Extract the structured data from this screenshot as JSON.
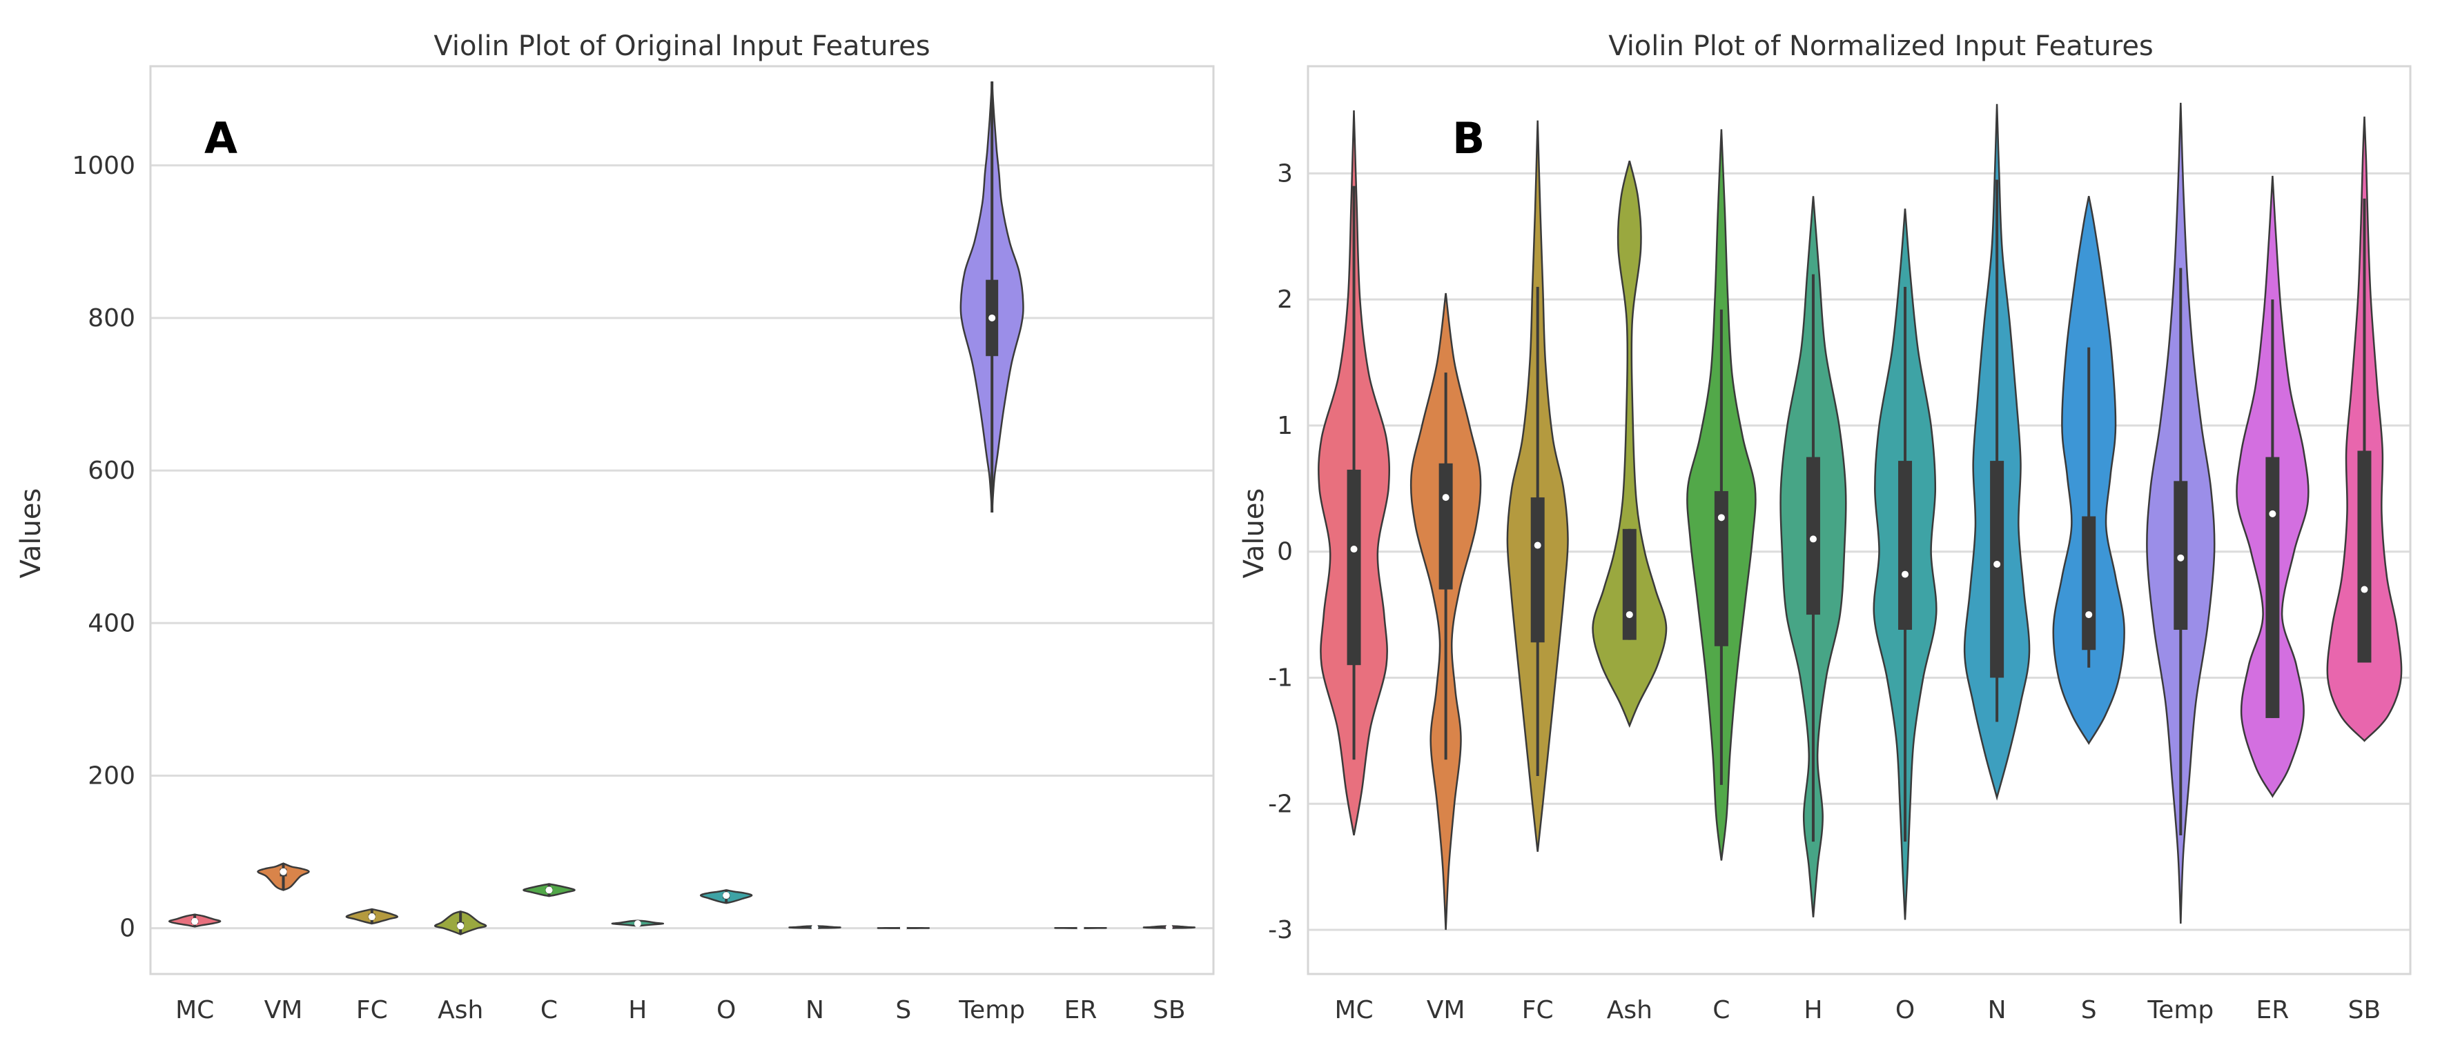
{
  "chart_data": [
    {
      "type": "violin",
      "panel_label": "A",
      "title": "Violin Plot of Original Input Features",
      "xlabel": "",
      "ylabel": "Values",
      "ylim": [
        -60,
        1130
      ],
      "yticks": [
        0,
        200,
        400,
        600,
        800,
        1000
      ],
      "grid": true,
      "categories": [
        "MC",
        "VM",
        "FC",
        "Ash",
        "C",
        "H",
        "O",
        "N",
        "S",
        "Temp",
        "ER",
        "SB"
      ],
      "colors": [
        "#e8707e",
        "#d9844a",
        "#b49a3f",
        "#9aa83f",
        "#52a849",
        "#47a586",
        "#3ea3a5",
        "#3d9fbf",
        "#3d96d6",
        "#9b8ee8",
        "#d36fe0",
        "#e866ad"
      ],
      "series": [
        {
          "name": "MC",
          "min": 2,
          "q1": 6,
          "median": 9,
          "q3": 12,
          "max": 18
        },
        {
          "name": "VM",
          "min": 50,
          "q1": 68,
          "median": 74,
          "q3": 78,
          "max": 85
        },
        {
          "name": "FC",
          "min": 6,
          "q1": 12,
          "median": 15,
          "q3": 19,
          "max": 25
        },
        {
          "name": "Ash",
          "min": -8,
          "q1": 0,
          "median": 3,
          "q3": 8,
          "max": 22
        },
        {
          "name": "C",
          "min": 42,
          "q1": 47,
          "median": 50,
          "q3": 53,
          "max": 58
        },
        {
          "name": "H",
          "min": 3,
          "q1": 5,
          "median": 6,
          "q3": 7,
          "max": 10
        },
        {
          "name": "O",
          "min": 33,
          "q1": 39,
          "median": 43,
          "q3": 46,
          "max": 50
        },
        {
          "name": "N",
          "min": 0,
          "q1": 0.5,
          "median": 1,
          "q3": 1.5,
          "max": 3
        },
        {
          "name": "S",
          "min": 0,
          "q1": 0.1,
          "median": 0.2,
          "q3": 0.3,
          "max": 0.5
        },
        {
          "name": "Temp",
          "min": 545,
          "q1": 750,
          "median": 800,
          "q3": 850,
          "max": 1110
        },
        {
          "name": "ER",
          "min": 0,
          "q1": 0.2,
          "median": 0.3,
          "q3": 0.4,
          "max": 0.5
        },
        {
          "name": "SB",
          "min": 0,
          "q1": 0.5,
          "median": 1,
          "q3": 1.5,
          "max": 3
        }
      ]
    },
    {
      "type": "violin",
      "panel_label": "B",
      "title": "Violin Plot of Normalized Input Features",
      "xlabel": "",
      "ylabel": "Values",
      "ylim": [
        -3.35,
        3.85
      ],
      "yticks": [
        -3,
        -2,
        -1,
        0,
        1,
        2,
        3
      ],
      "grid": true,
      "categories": [
        "MC",
        "VM",
        "FC",
        "Ash",
        "C",
        "H",
        "O",
        "N",
        "S",
        "Temp",
        "ER",
        "SB"
      ],
      "colors": [
        "#e8707e",
        "#d9844a",
        "#b49a3f",
        "#9aa83f",
        "#52a849",
        "#47a586",
        "#3ea3a5",
        "#3d9fbf",
        "#3d96d6",
        "#9b8ee8",
        "#d36fe0",
        "#e866ad"
      ],
      "series": [
        {
          "name": "MC",
          "min": -2.25,
          "max": 3.5,
          "q1": -0.9,
          "median": 0.02,
          "q3": 0.65,
          "whisker_low": -1.65,
          "whisker_high": 2.9
        },
        {
          "name": "VM",
          "min": -3.0,
          "max": 2.05,
          "q1": -0.3,
          "median": 0.43,
          "q3": 0.7,
          "whisker_low": -1.65,
          "whisker_high": 1.42
        },
        {
          "name": "FC",
          "min": -2.38,
          "max": 3.42,
          "q1": -0.72,
          "median": 0.05,
          "q3": 0.43,
          "whisker_low": -1.78,
          "whisker_high": 2.1
        },
        {
          "name": "Ash",
          "min": -1.38,
          "max": 3.1,
          "q1": -0.7,
          "median": -0.5,
          "q3": 0.18,
          "whisker_low": -0.7,
          "whisker_high": 0.18
        },
        {
          "name": "C",
          "min": -2.45,
          "max": 3.35,
          "q1": -0.75,
          "median": 0.27,
          "q3": 0.48,
          "whisker_low": -1.85,
          "whisker_high": 1.92
        },
        {
          "name": "H",
          "min": -2.9,
          "max": 2.82,
          "q1": -0.5,
          "median": 0.1,
          "q3": 0.75,
          "whisker_low": -2.3,
          "whisker_high": 2.2
        },
        {
          "name": "O",
          "min": -2.92,
          "max": 2.72,
          "q1": -0.62,
          "median": -0.18,
          "q3": 0.72,
          "whisker_low": -2.3,
          "whisker_high": 2.1
        },
        {
          "name": "N",
          "min": -1.95,
          "max": 3.55,
          "q1": -1.0,
          "median": -0.1,
          "q3": 0.72,
          "whisker_low": -1.35,
          "whisker_high": 2.95
        },
        {
          "name": "S",
          "min": -1.52,
          "max": 2.82,
          "q1": -0.78,
          "median": -0.5,
          "q3": 0.28,
          "whisker_low": -0.92,
          "whisker_high": 1.62
        },
        {
          "name": "Temp",
          "min": -2.95,
          "max": 3.56,
          "q1": -0.62,
          "median": -0.05,
          "q3": 0.56,
          "whisker_low": -2.25,
          "whisker_high": 2.25
        },
        {
          "name": "ER",
          "min": -1.94,
          "max": 2.98,
          "q1": -1.32,
          "median": 0.3,
          "q3": 0.75,
          "whisker_low": -1.32,
          "whisker_high": 2.0
        },
        {
          "name": "SB",
          "min": -1.5,
          "max": 3.45,
          "q1": -0.88,
          "median": -0.3,
          "q3": 0.8,
          "whisker_low": -0.88,
          "whisker_high": 2.8
        }
      ]
    }
  ]
}
